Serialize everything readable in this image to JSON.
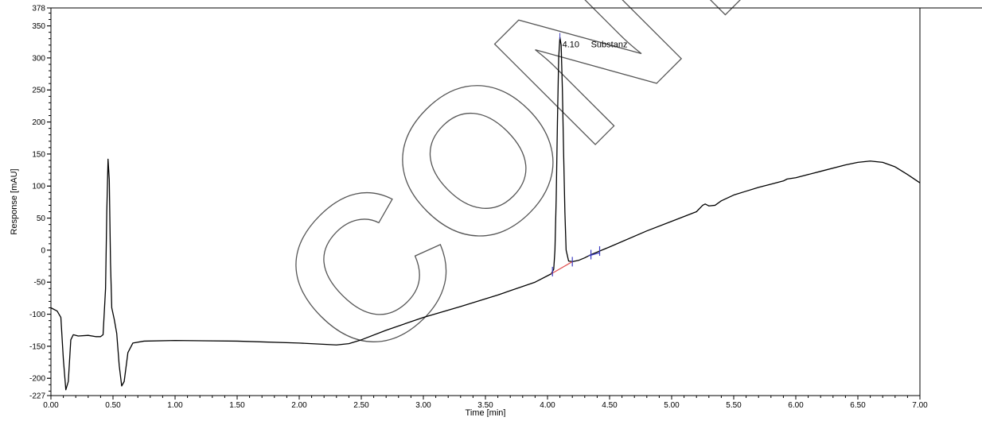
{
  "chart_data": {
    "type": "line",
    "xlabel": "Time [min]",
    "ylabel": "Response [mAU]",
    "xlim": [
      0,
      7
    ],
    "ylim": [
      -227,
      378
    ],
    "x_ticks": [
      "0.00",
      "0.50",
      "1.00",
      "1.50",
      "2.00",
      "2.50",
      "3.00",
      "3.50",
      "4.00",
      "4.50",
      "5.00",
      "5.50",
      "6.00",
      "6.50",
      "7.00"
    ],
    "y_ticks": [
      "378",
      "350",
      "300",
      "250",
      "200",
      "150",
      "100",
      "50",
      "0",
      "-50",
      "-100",
      "-150",
      "-200",
      "-227"
    ],
    "grid": false,
    "peak_annotation": {
      "time": 4.1,
      "label": "4.10",
      "name": "Substanz"
    },
    "watermark": "CONTROL",
    "series": [
      {
        "color": "#000000",
        "points": [
          [
            0.0,
            -90
          ],
          [
            0.05,
            -95
          ],
          [
            0.08,
            -105
          ],
          [
            0.1,
            -170
          ],
          [
            0.12,
            -218
          ],
          [
            0.14,
            -205
          ],
          [
            0.16,
            -140
          ],
          [
            0.18,
            -132
          ],
          [
            0.22,
            -134
          ],
          [
            0.3,
            -133
          ],
          [
            0.36,
            -135
          ],
          [
            0.4,
            -135
          ],
          [
            0.42,
            -132
          ],
          [
            0.44,
            -60
          ],
          [
            0.45,
            60
          ],
          [
            0.46,
            142
          ],
          [
            0.47,
            110
          ],
          [
            0.48,
            -20
          ],
          [
            0.49,
            -90
          ],
          [
            0.51,
            -108
          ],
          [
            0.53,
            -130
          ],
          [
            0.55,
            -180
          ],
          [
            0.57,
            -212
          ],
          [
            0.59,
            -205
          ],
          [
            0.62,
            -160
          ],
          [
            0.66,
            -145
          ],
          [
            0.75,
            -142
          ],
          [
            1.0,
            -141
          ],
          [
            1.5,
            -142
          ],
          [
            2.0,
            -145
          ],
          [
            2.3,
            -148
          ],
          [
            2.4,
            -146
          ],
          [
            2.5,
            -140
          ],
          [
            2.7,
            -125
          ],
          [
            3.0,
            -105
          ],
          [
            3.3,
            -88
          ],
          [
            3.6,
            -70
          ],
          [
            3.9,
            -50
          ],
          [
            4.03,
            -37
          ],
          [
            4.05,
            -30
          ],
          [
            4.06,
            0
          ],
          [
            4.07,
            80
          ],
          [
            4.08,
            200
          ],
          [
            4.09,
            300
          ],
          [
            4.1,
            332
          ],
          [
            4.11,
            320
          ],
          [
            4.12,
            250
          ],
          [
            4.13,
            150
          ],
          [
            4.14,
            60
          ],
          [
            4.15,
            0
          ],
          [
            4.17,
            -17
          ],
          [
            4.2,
            -18
          ],
          [
            4.25,
            -16
          ],
          [
            4.3,
            -12
          ],
          [
            4.35,
            -7
          ],
          [
            4.4,
            -3
          ],
          [
            4.5,
            5
          ],
          [
            4.8,
            30
          ],
          [
            5.0,
            45
          ],
          [
            5.2,
            60
          ],
          [
            5.25,
            70
          ],
          [
            5.27,
            72
          ],
          [
            5.3,
            69
          ],
          [
            5.35,
            70
          ],
          [
            5.4,
            77
          ],
          [
            5.5,
            86
          ],
          [
            5.6,
            92
          ],
          [
            5.7,
            98
          ],
          [
            5.8,
            103
          ],
          [
            5.9,
            108
          ],
          [
            5.93,
            111
          ],
          [
            6.0,
            113
          ],
          [
            6.2,
            123
          ],
          [
            6.4,
            133
          ],
          [
            6.5,
            137
          ],
          [
            6.6,
            139
          ],
          [
            6.7,
            137
          ],
          [
            6.8,
            130
          ],
          [
            6.9,
            118
          ],
          [
            7.0,
            105
          ]
        ]
      }
    ],
    "baseline_segments": [
      {
        "color": "#e05050",
        "points": [
          [
            4.03,
            -37
          ],
          [
            4.2,
            -18
          ]
        ]
      },
      {
        "color": "#3a3ac0",
        "points": [
          [
            4.33,
            -9
          ],
          [
            4.42,
            -4
          ]
        ]
      }
    ],
    "peak_markers": [
      {
        "time": 4.04,
        "color": "#3a3ac0"
      },
      {
        "time": 4.2,
        "color": "#3a3ac0"
      },
      {
        "time": 4.35,
        "color": "#3a3ac0"
      },
      {
        "time": 4.42,
        "color": "#3a3ac0"
      }
    ]
  }
}
